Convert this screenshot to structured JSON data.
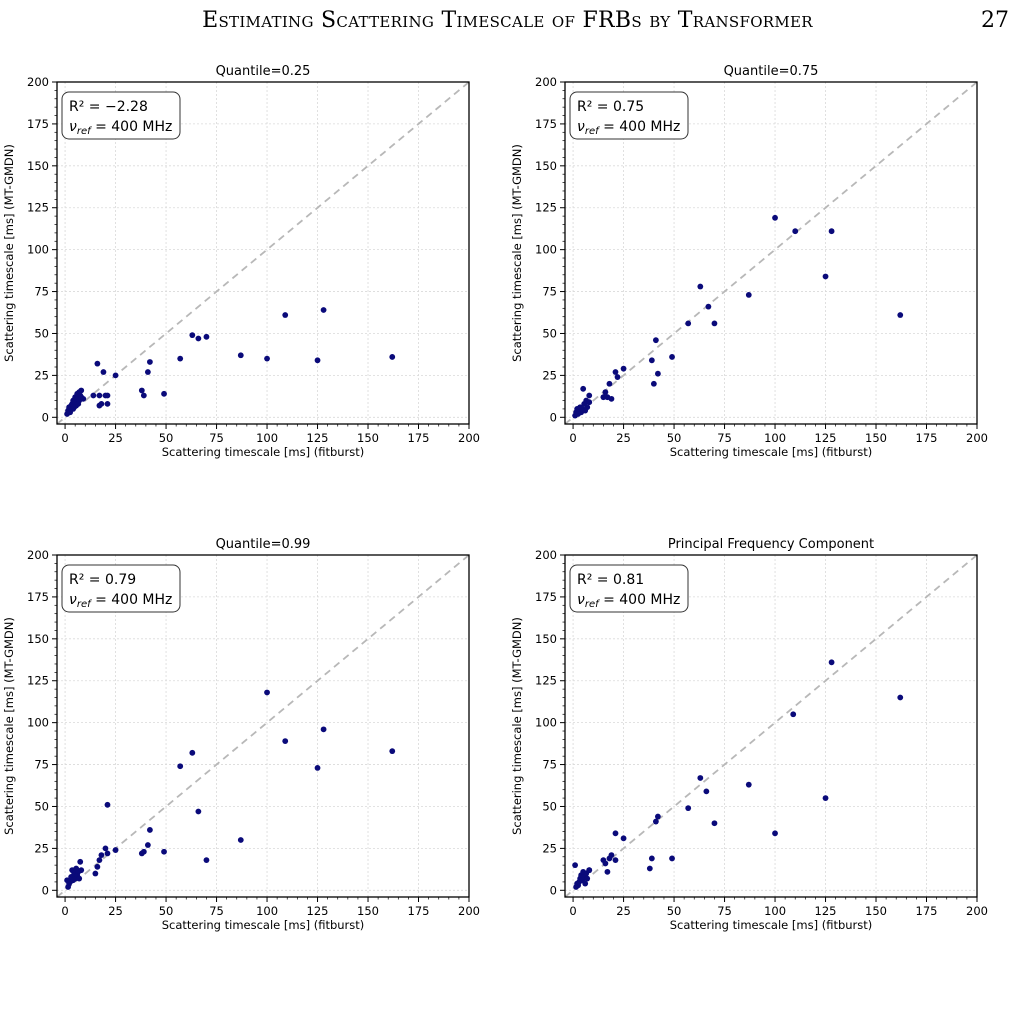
{
  "header": {
    "running_title": "Estimating Scattering Timescale of FRBs by Transformer",
    "page_number": "27"
  },
  "caption": {
    "text": ""
  },
  "chart_data": [
    {
      "type": "scatter",
      "title": "Quantile=0.25",
      "xlabel": "Scattering timescale [ms] (fitburst)",
      "ylabel": "Scattering timescale [ms] (MT-GMDN)",
      "xlim": [
        -4,
        200
      ],
      "ylim": [
        -4,
        200
      ],
      "xticks": [
        0,
        25,
        50,
        75,
        100,
        125,
        150,
        175,
        200
      ],
      "yticks": [
        0,
        25,
        50,
        75,
        100,
        125,
        150,
        175,
        200
      ],
      "grid": true,
      "reference_line": "y=x",
      "annotation": {
        "r2_label": "R² = −2.28",
        "nu_label": "ν",
        "nu_sub": "ref",
        "nu_value": " = 400 MHz"
      },
      "series": [
        {
          "x": [
            1,
            1.5,
            2,
            2.5,
            3,
            3,
            3.5,
            4,
            4,
            4.5,
            5,
            5,
            5.5,
            6,
            6,
            6.5,
            7,
            7,
            7.5,
            8,
            8,
            9,
            14,
            16,
            17,
            17,
            18,
            19,
            20,
            21,
            21,
            25,
            38,
            39,
            41,
            42,
            49,
            57,
            63,
            66,
            70,
            87,
            100,
            109,
            125,
            128,
            162
          ],
          "y": [
            2,
            4,
            6,
            3,
            5,
            7,
            8,
            5,
            10,
            6,
            9,
            12,
            7,
            14,
            11,
            8,
            15,
            10,
            13,
            16,
            12,
            11,
            13,
            32,
            7,
            13,
            8,
            27,
            13,
            13,
            8,
            25,
            16,
            13,
            27,
            33,
            14,
            35,
            49,
            47,
            48,
            37,
            35,
            61,
            34,
            64,
            36
          ]
        }
      ]
    },
    {
      "type": "scatter",
      "title": "Quantile=0.75",
      "xlabel": "Scattering timescale [ms] (fitburst)",
      "ylabel": "Scattering timescale [ms] (MT-GMDN)",
      "xlim": [
        -4,
        200
      ],
      "ylim": [
        -4,
        200
      ],
      "xticks": [
        0,
        25,
        50,
        75,
        100,
        125,
        150,
        175,
        200
      ],
      "yticks": [
        0,
        25,
        50,
        75,
        100,
        125,
        150,
        175,
        200
      ],
      "grid": true,
      "reference_line": "y=x",
      "annotation": {
        "r2_label": "R² = 0.75",
        "nu_label": "ν",
        "nu_sub": "ref",
        "nu_value": " = 400 MHz"
      },
      "series": [
        {
          "x": [
            1,
            1.5,
            2,
            2.5,
            3,
            3.5,
            4,
            4.5,
            5,
            5.5,
            6,
            6.5,
            7,
            8,
            8,
            15,
            16,
            17,
            18,
            19,
            21,
            22,
            25,
            39,
            40,
            41,
            42,
            49,
            57,
            63,
            67,
            70,
            87,
            100,
            110,
            125,
            128,
            162
          ],
          "y": [
            1,
            3,
            5,
            2,
            4,
            6,
            3,
            5,
            17,
            8,
            4,
            10,
            6,
            9,
            13,
            12,
            15,
            12,
            20,
            11,
            27,
            24,
            29,
            34,
            20,
            46,
            26,
            36,
            56,
            78,
            66,
            56,
            73,
            119,
            111,
            84,
            111,
            61
          ]
        }
      ]
    },
    {
      "type": "scatter",
      "title": "Quantile=0.99",
      "xlabel": "Scattering timescale [ms] (fitburst)",
      "ylabel": "Scattering timescale [ms] (MT-GMDN)",
      "xlim": [
        -4,
        200
      ],
      "ylim": [
        -4,
        200
      ],
      "xticks": [
        0,
        25,
        50,
        75,
        100,
        125,
        150,
        175,
        200
      ],
      "yticks": [
        0,
        25,
        50,
        75,
        100,
        125,
        150,
        175,
        200
      ],
      "grid": true,
      "reference_line": "y=x",
      "annotation": {
        "r2_label": "R² = 0.79",
        "nu_label": "ν",
        "nu_sub": "ref",
        "nu_value": " = 400 MHz"
      },
      "series": [
        {
          "x": [
            1,
            1.5,
            2,
            2.5,
            3,
            3.5,
            4,
            4.5,
            5,
            5.5,
            6,
            6.5,
            7,
            7.5,
            8,
            15,
            16,
            17,
            18,
            20,
            21,
            21,
            25,
            38,
            39,
            41,
            42,
            49,
            57,
            63,
            66,
            70,
            87,
            100,
            109,
            125,
            128,
            162
          ],
          "y": [
            6,
            2,
            4,
            5,
            8,
            12,
            6,
            10,
            7,
            13,
            9,
            11,
            7,
            17,
            12,
            10,
            14,
            18,
            21,
            25,
            51,
            22,
            24,
            22,
            23,
            27,
            36,
            23,
            74,
            82,
            47,
            18,
            30,
            118,
            89,
            73,
            96,
            83
          ]
        }
      ]
    },
    {
      "type": "scatter",
      "title": "Principal Frequency Component",
      "xlabel": "Scattering timescale [ms] (fitburst)",
      "ylabel": "Scattering timescale [ms] (MT-GMDN)",
      "xlim": [
        -4,
        200
      ],
      "ylim": [
        -4,
        200
      ],
      "xticks": [
        0,
        25,
        50,
        75,
        100,
        125,
        150,
        175,
        200
      ],
      "yticks": [
        0,
        25,
        50,
        75,
        100,
        125,
        150,
        175,
        200
      ],
      "grid": true,
      "reference_line": "y=x",
      "annotation": {
        "r2_label": "R² = 0.81",
        "nu_label": "ν",
        "nu_sub": "ref",
        "nu_value": " = 400 MHz"
      },
      "series": [
        {
          "x": [
            1,
            1.5,
            2,
            2.5,
            3,
            3.5,
            4,
            4.5,
            5,
            5.5,
            6,
            6.5,
            7,
            8,
            8,
            15,
            16,
            17,
            18,
            19,
            21,
            21,
            25,
            38,
            39,
            41,
            42,
            49,
            57,
            63,
            66,
            70,
            87,
            100,
            109,
            125,
            128,
            162
          ],
          "y": [
            15,
            2,
            4,
            3,
            5,
            7,
            9,
            6,
            11,
            8,
            4,
            10,
            7,
            12,
            12,
            18,
            16,
            11,
            19,
            21,
            34,
            18,
            31,
            13,
            19,
            41,
            44,
            19,
            49,
            67,
            59,
            40,
            63,
            34,
            105,
            55,
            136,
            115
          ]
        }
      ]
    }
  ]
}
